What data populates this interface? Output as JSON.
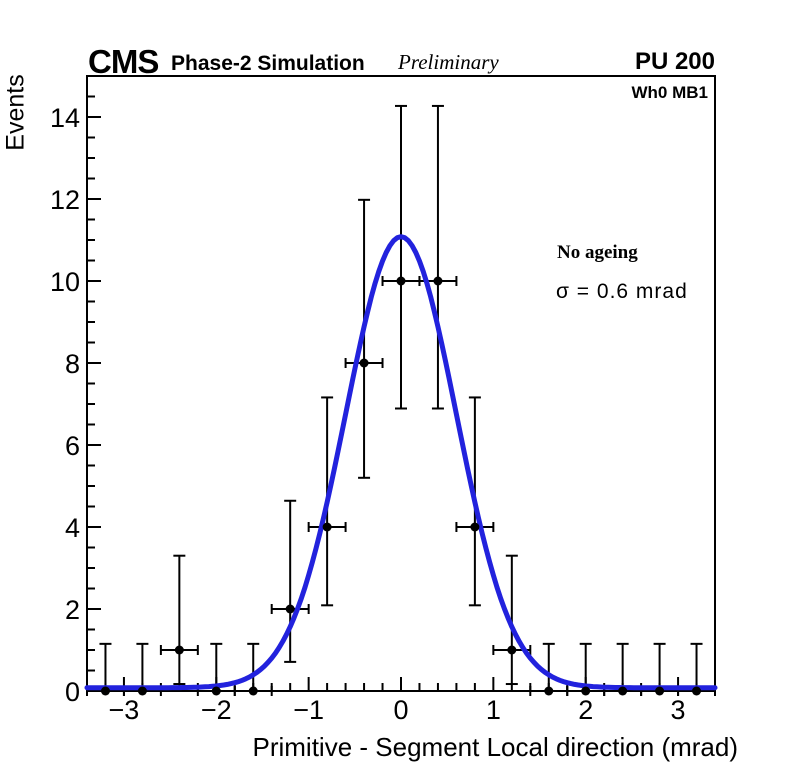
{
  "header": {
    "cms": "CMS",
    "subtitle": "Phase-2 Simulation",
    "preliminary": "Preliminary",
    "pileup": "PU 200"
  },
  "annotations": {
    "station": "Wh0 MB1",
    "ageing": "No ageing",
    "sigma": "σ = 0.6 mrad"
  },
  "chart_data": {
    "type": "scatter",
    "title": "",
    "xlabel": "Primitive - Segment Local direction (mrad)",
    "ylabel": "Events",
    "xlim": [
      -3.4,
      3.4
    ],
    "ylim": [
      0,
      15
    ],
    "grid": false,
    "legend_position": "none",
    "x_major_ticks": [
      -3,
      -2,
      -1,
      0,
      1,
      2,
      3
    ],
    "x_tick_labels": [
      "−3",
      "−2",
      "−1",
      "0",
      "1",
      "2",
      "3"
    ],
    "x_minor_step": 0.2,
    "y_major_ticks": [
      0,
      2,
      4,
      6,
      8,
      10,
      12,
      14
    ],
    "y_tick_labels": [
      "0",
      "2",
      "4",
      "6",
      "8",
      "10",
      "12",
      "14"
    ],
    "y_minor_step": 0.5,
    "bin_width": 0.4,
    "points": {
      "x": [
        -3.2,
        -2.8,
        -2.4,
        -2.0,
        -1.6,
        -1.2,
        -0.8,
        -0.4,
        0.0,
        0.4,
        0.8,
        1.2,
        1.6,
        2.0,
        2.4,
        2.8,
        3.2
      ],
      "y": [
        0,
        0,
        1,
        0,
        0,
        2,
        4,
        8,
        10,
        10,
        4,
        1,
        0,
        0,
        0,
        0,
        0
      ],
      "y_err_low": [
        0,
        0,
        0.17,
        0,
        0,
        0.71,
        2.09,
        5.2,
        6.89,
        6.89,
        2.09,
        0.17,
        0,
        0,
        0,
        0,
        0
      ],
      "y_err_high": [
        1.15,
        1.15,
        3.3,
        1.15,
        1.15,
        4.64,
        7.16,
        11.98,
        14.27,
        14.27,
        7.16,
        3.3,
        1.15,
        1.15,
        1.15,
        1.15,
        1.15
      ],
      "x_err": 0.2,
      "marker_color": "#000000"
    },
    "fit_curve": {
      "shape": "gaussian",
      "amplitude": 11.0,
      "mean": 0.0,
      "sigma": 0.6,
      "baseline": 0.08,
      "color": "#2222dd",
      "line_width": 5
    }
  }
}
